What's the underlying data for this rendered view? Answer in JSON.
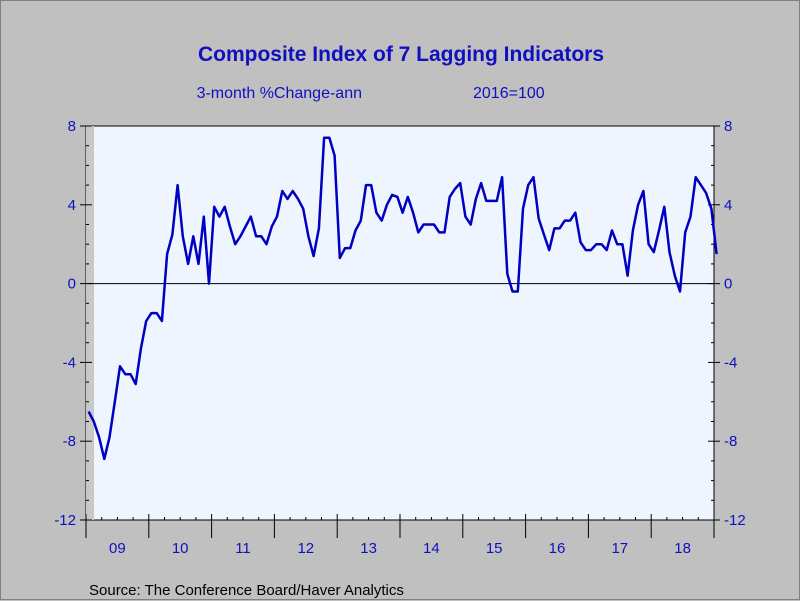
{
  "chart_data": {
    "type": "line",
    "title": "Composite Index of 7 Lagging Indicators",
    "subtitle_left": "3-month %Change-ann",
    "subtitle_right": "2016=100",
    "source": "Source:  The Conference Board/Haver Analytics",
    "ylim": [
      -12,
      8
    ],
    "yticks": [
      "8",
      "4",
      "0",
      "-4",
      "-8",
      "-12"
    ],
    "ytick_values": [
      8,
      4,
      0,
      -4,
      -8,
      -12
    ],
    "xlim": [
      2009.0,
      2019.0
    ],
    "xticks": [
      "09",
      "10",
      "11",
      "12",
      "13",
      "14",
      "15",
      "16",
      "17",
      "18"
    ],
    "zero_line": true,
    "colors": {
      "line": "#0000c0",
      "plot_bg": "#eef5ff",
      "frame_bg": "#c0c0c0",
      "text": "#1010c0"
    },
    "series": [
      {
        "values": [
          -6.5,
          -7.0,
          -7.8,
          -8.9,
          -7.8,
          -6.0,
          -4.2,
          -4.6,
          -4.6,
          -5.1,
          -3.3,
          -1.9,
          -1.5,
          -1.5,
          -1.9,
          1.5,
          2.5,
          5.0,
          2.4,
          1.0,
          2.4,
          1.0,
          3.4,
          0.0,
          3.9,
          3.4,
          3.9,
          2.9,
          2.0,
          2.4,
          2.9,
          3.4,
          2.4,
          2.4,
          2.0,
          2.9,
          3.4,
          4.7,
          4.3,
          4.7,
          4.3,
          3.8,
          2.4,
          1.4,
          2.8,
          7.4,
          7.4,
          6.5,
          1.3,
          1.8,
          1.8,
          2.7,
          3.2,
          5.0,
          5.0,
          3.6,
          3.2,
          4.0,
          4.5,
          4.4,
          3.6,
          4.4,
          3.6,
          2.6,
          3.0,
          3.0,
          3.0,
          2.6,
          2.6,
          4.4,
          4.8,
          5.1,
          3.4,
          3.0,
          4.3,
          5.1,
          4.2,
          4.2,
          4.2,
          5.4,
          0.5,
          -0.4,
          -0.4,
          3.8,
          5.0,
          5.4,
          3.3,
          2.5,
          1.7,
          2.8,
          2.8,
          3.2,
          3.2,
          3.6,
          2.1,
          1.7,
          1.7,
          2.0,
          2.0,
          1.7,
          2.7,
          2.0,
          2.0,
          0.4,
          2.7,
          4.0,
          4.7,
          2.0,
          1.6,
          2.7,
          3.9,
          1.6,
          0.4,
          -0.4,
          2.6,
          3.4,
          5.4,
          5.0,
          4.6,
          3.8,
          1.5
        ]
      }
    ]
  }
}
